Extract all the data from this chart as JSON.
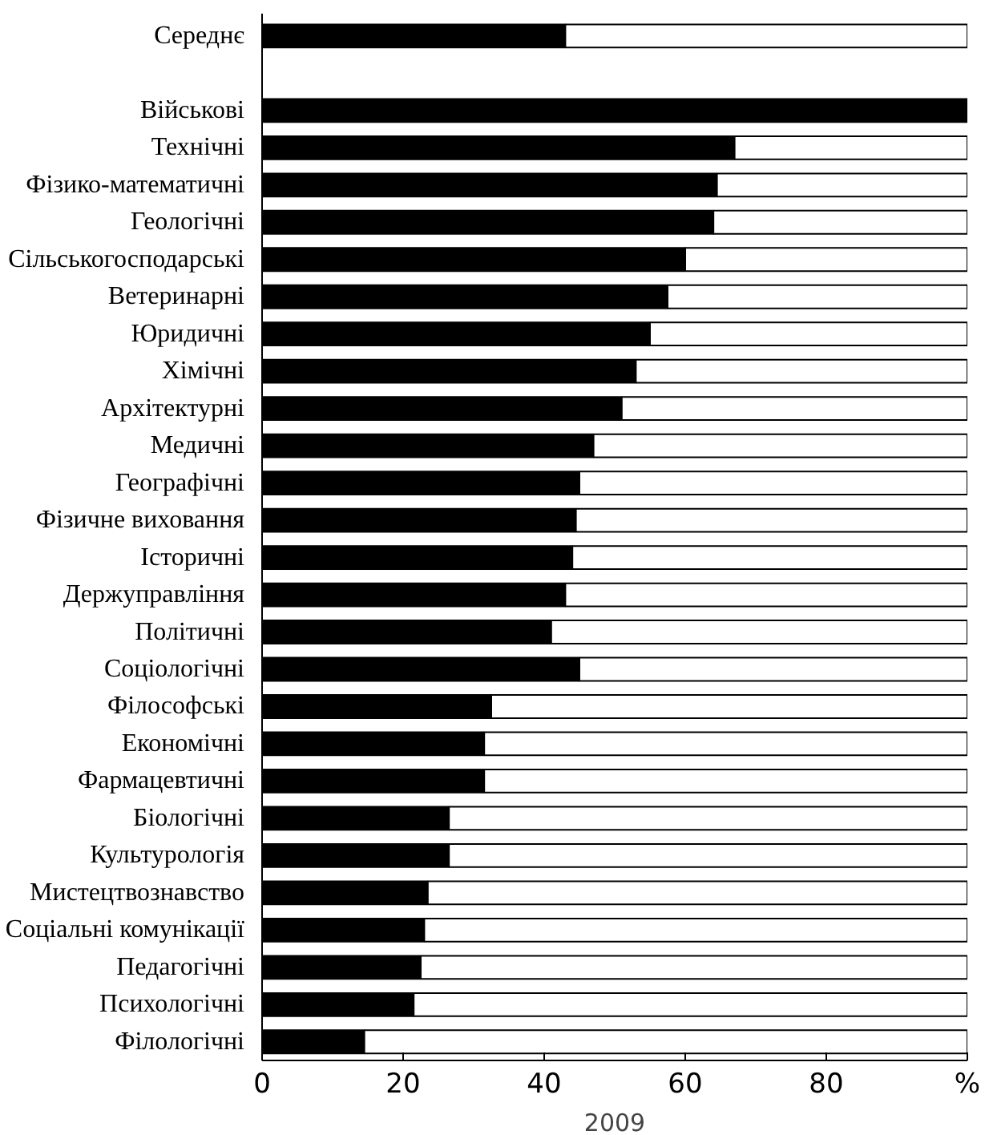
{
  "chart_data": {
    "type": "bar",
    "orientation": "horizontal",
    "stacked": true,
    "xlabel": "2009",
    "categories": [
      "Середнє",
      null,
      "Військові",
      "Технічні",
      "Фізико-математичні",
      "Геологічні",
      "Сільськогосподарські",
      "Ветеринарні",
      "Юридичні",
      "Хімічні",
      "Архітектурні",
      "Медичні",
      "Географічні",
      "Фізичне виховання",
      "Історичні",
      "Держуправління",
      "Політичні",
      "Соціологічні",
      "Філософські",
      "Економічні",
      "Фармацевтичні",
      "Біологічні",
      "Культурологія",
      "Мистецтвознавство",
      "Соціальні комунікації",
      "Педагогічні",
      "Психологічні",
      "Філологічні"
    ],
    "series": [
      {
        "color": "#000000",
        "values": [
          43,
          null,
          100,
          67,
          64.5,
          64,
          60,
          57.5,
          55,
          53,
          51,
          47,
          45,
          44.5,
          44,
          43,
          41,
          45,
          32.5,
          31.5,
          31.5,
          26.5,
          26.5,
          23.5,
          23,
          22.5,
          21.5,
          14.5
        ]
      },
      {
        "color": "#ffffff",
        "values": [
          57,
          null,
          null,
          33,
          35.5,
          36,
          40,
          42.5,
          45,
          47,
          49,
          53,
          55,
          55.5,
          56,
          57,
          59,
          55,
          67.5,
          68.5,
          68.5,
          73.5,
          73.5,
          76.5,
          77,
          77.5,
          78.5,
          85.5
        ]
      }
    ],
    "xlim": [
      0,
      100
    ],
    "xticks": [
      0,
      20,
      40,
      60,
      80,
      {
        "value": 100,
        "label": "%"
      }
    ],
    "grid": false
  }
}
